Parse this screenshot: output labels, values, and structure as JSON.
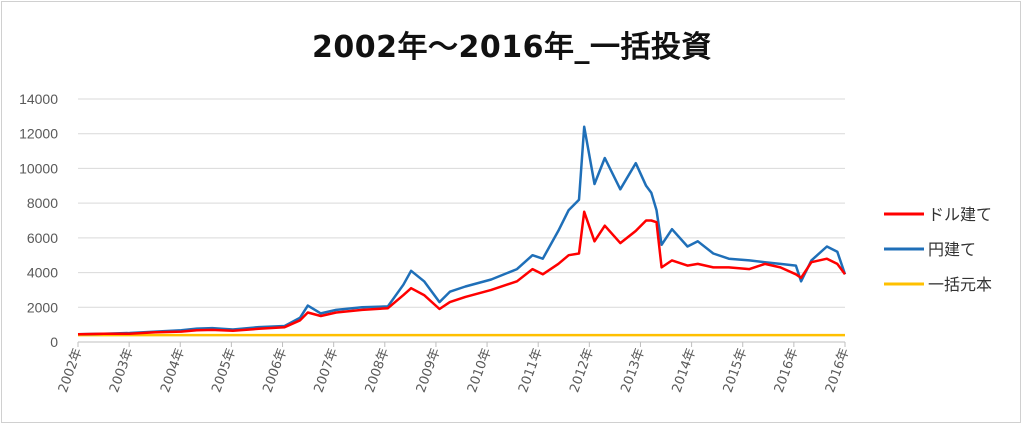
{
  "chart_data": {
    "type": "line",
    "title": "2002年～2016年_一括投資",
    "xlabel": "",
    "ylabel": "",
    "ylim": [
      0,
      14000
    ],
    "yticks": [
      0,
      2000,
      4000,
      6000,
      8000,
      10000,
      12000,
      14000
    ],
    "x_labels": [
      "2002年",
      "2003年",
      "2004年",
      "2005年",
      "2006年",
      "2007年",
      "2008年",
      "2009年",
      "2010年",
      "2011年",
      "2012年",
      "2013年",
      "2014年",
      "2015年",
      "2016年",
      "2016年"
    ],
    "grid": true,
    "legend_position": "right",
    "x": [
      2002.0,
      2002.5,
      2003.0,
      2003.5,
      2004.0,
      2004.3,
      2004.6,
      2005.0,
      2005.5,
      2006.0,
      2006.3,
      2006.45,
      2006.7,
      2007.0,
      2007.5,
      2008.0,
      2008.3,
      2008.45,
      2008.7,
      2009.0,
      2009.2,
      2009.5,
      2010.0,
      2010.5,
      2010.8,
      2011.0,
      2011.3,
      2011.5,
      2011.7,
      2011.8,
      2012.0,
      2012.2,
      2012.5,
      2012.8,
      2013.0,
      2013.1,
      2013.2,
      2013.3,
      2013.5,
      2013.8,
      2014.0,
      2014.3,
      2014.6,
      2015.0,
      2015.3,
      2015.6,
      2015.9,
      2016.0,
      2016.2,
      2016.5,
      2016.7,
      2016.85
    ],
    "series": [
      {
        "name": "ドル建て",
        "color": "#ff0000",
        "values": [
          450,
          470,
          480,
          560,
          600,
          680,
          700,
          650,
          760,
          850,
          1250,
          1700,
          1500,
          1700,
          1850,
          1950,
          2700,
          3100,
          2700,
          1900,
          2300,
          2600,
          3000,
          3500,
          4200,
          3900,
          4500,
          5000,
          5100,
          7500,
          5800,
          6700,
          5700,
          6400,
          7000,
          7000,
          6900,
          4300,
          4700,
          4400,
          4500,
          4300,
          4300,
          4200,
          4500,
          4300,
          3900,
          3700,
          4600,
          4800,
          4500,
          3900
        ]
      },
      {
        "name": "円建て",
        "color": "#1f6fb8",
        "values": [
          450,
          480,
          520,
          600,
          680,
          770,
          800,
          720,
          860,
          920,
          1400,
          2100,
          1650,
          1850,
          2000,
          2050,
          3300,
          4100,
          3500,
          2300,
          2900,
          3200,
          3600,
          4200,
          5000,
          4800,
          6400,
          7600,
          8200,
          12400,
          9100,
          10600,
          8800,
          10300,
          9000,
          8600,
          7600,
          5600,
          6500,
          5500,
          5800,
          5100,
          4800,
          4700,
          4600,
          4500,
          4400,
          3500,
          4700,
          5500,
          5200,
          3900
        ]
      },
      {
        "name": "一括元本",
        "color": "#ffc000",
        "values": [
          400,
          400,
          400,
          400,
          400,
          400,
          400,
          400,
          400,
          400,
          400,
          400,
          400,
          400,
          400,
          400,
          400,
          400,
          400,
          400,
          400,
          400,
          400,
          400,
          400,
          400,
          400,
          400,
          400,
          400,
          400,
          400,
          400,
          400,
          400,
          400,
          400,
          400,
          400,
          400,
          400,
          400,
          400,
          400,
          400,
          400,
          400,
          400,
          400,
          400,
          400,
          400
        ]
      }
    ]
  }
}
